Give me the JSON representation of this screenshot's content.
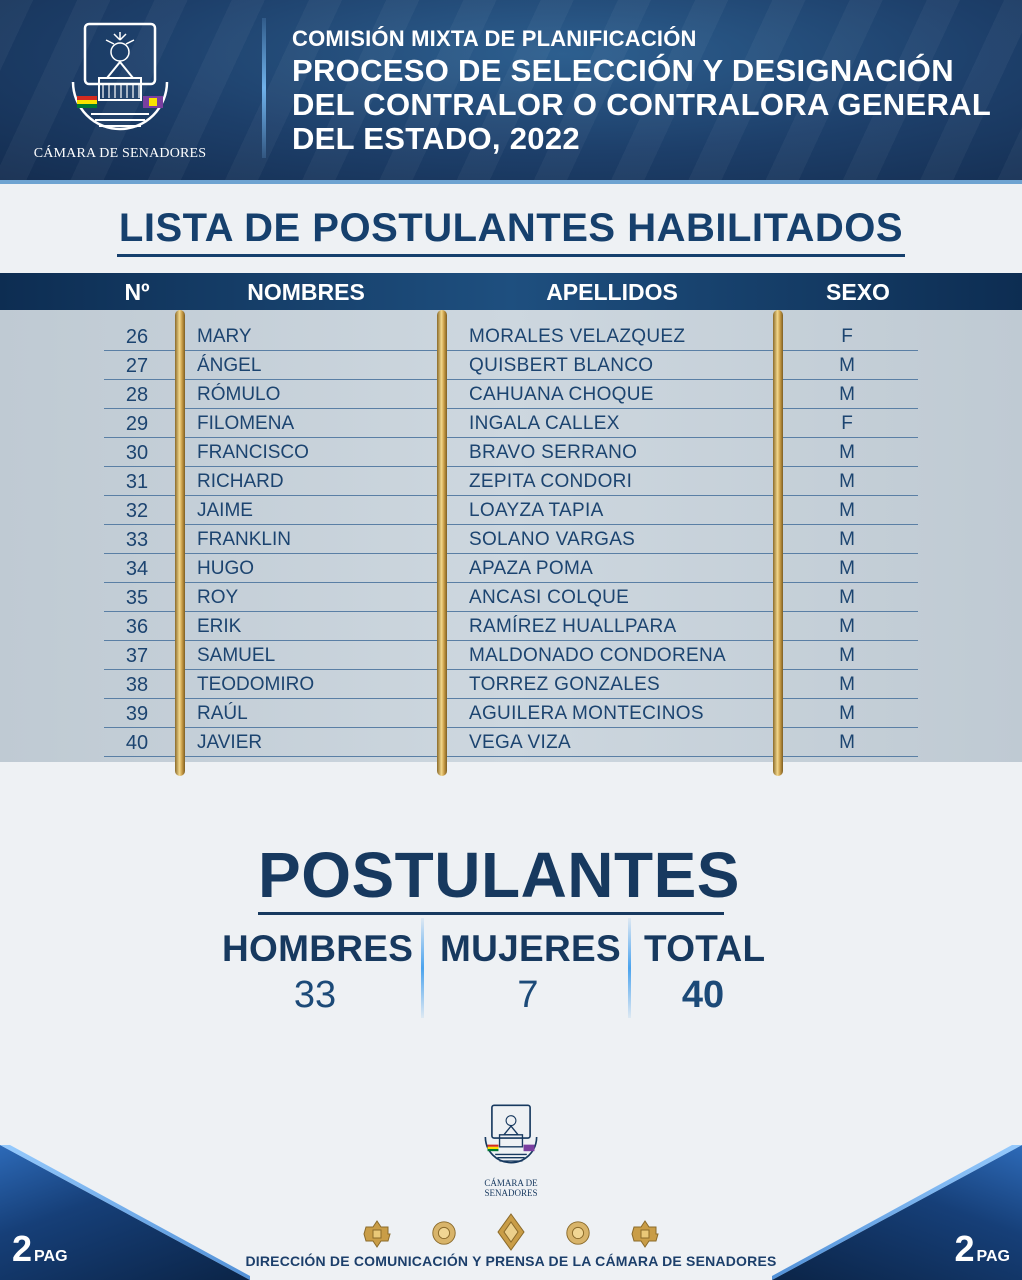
{
  "header": {
    "logo_caption": "CÁMARA DE SENADORES",
    "line1": "COMISIÓN MIXTA DE PLANIFICACIÓN",
    "line2": "PROCESO DE SELECCIÓN Y DESIGNACIÓN DEL CONTRALOR O CONTRALORA GENERAL DEL ESTADO, 2022"
  },
  "list_title": "LISTA DE POSTULANTES HABILITADOS",
  "table": {
    "headers": {
      "num": "Nº",
      "names": "NOMBRES",
      "surnames": "APELLIDOS",
      "sex": "SEXO"
    },
    "rows": [
      {
        "num": "26",
        "name": "MARY",
        "surname": "MORALES VELAZQUEZ",
        "sex": "F"
      },
      {
        "num": "27",
        "name": " ÁNGEL",
        "surname": "QUISBERT BLANCO",
        "sex": "M"
      },
      {
        "num": "28",
        "name": "RÓMULO",
        "surname": "CAHUANA CHOQUE",
        "sex": "M"
      },
      {
        "num": "29",
        "name": "FILOMENA",
        "surname": "INGALA CALLEX",
        "sex": "F"
      },
      {
        "num": "30",
        "name": "FRANCISCO",
        "surname": "BRAVO SERRANO",
        "sex": "M"
      },
      {
        "num": "31",
        "name": "RICHARD",
        "surname": "ZEPITA CONDORI",
        "sex": "M"
      },
      {
        "num": "32",
        "name": "JAIME",
        "surname": "LOAYZA TAPIA",
        "sex": "M"
      },
      {
        "num": "33",
        "name": "FRANKLIN",
        "surname": "SOLANO VARGAS",
        "sex": "M"
      },
      {
        "num": "34",
        "name": "HUGO",
        "surname": "APAZA POMA",
        "sex": "M"
      },
      {
        "num": "35",
        "name": "ROY",
        "surname": "ANCASI COLQUE",
        "sex": "M"
      },
      {
        "num": "36",
        "name": "ERIK",
        "surname": "RAMÍREZ HUALLPARA",
        "sex": "M"
      },
      {
        "num": "37",
        "name": "SAMUEL",
        "surname": "MALDONADO CONDORENA",
        "sex": "M"
      },
      {
        "num": "38",
        "name": "TEODOMIRO",
        "surname": "TORREZ GONZALES",
        "sex": "M"
      },
      {
        "num": "39",
        "name": "RAÚL",
        "surname": "AGUILERA MONTECINOS",
        "sex": "M"
      },
      {
        "num": "40",
        "name": "JAVIER",
        "surname": "VEGA VIZA",
        "sex": "M"
      }
    ]
  },
  "summary": {
    "title": "POSTULANTES",
    "men_label": "HOMBRES",
    "men_value": "33",
    "women_label": "MUJERES",
    "women_value": "7",
    "total_label": "TOTAL",
    "total_value": "40"
  },
  "footer": {
    "logo_caption": "CÁMARA DE SENADORES",
    "text": "DIRECCIÓN DE COMUNICACIÓN Y PRENSA DE LA CÁMARA DE SENADORES",
    "page_number": "2",
    "page_suffix": "PAG"
  },
  "colors": {
    "navy": "#16406d",
    "gold": "#c99d47",
    "accent_blue": "#4aa3ee"
  }
}
